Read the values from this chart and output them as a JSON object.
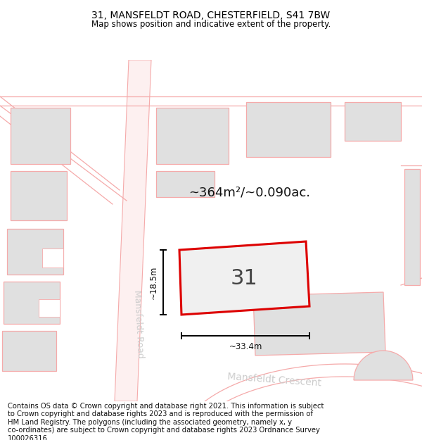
{
  "title": "31, MANSFELDT ROAD, CHESTERFIELD, S41 7BW",
  "subtitle": "Map shows position and indicative extent of the property.",
  "area_label": "~364m²/~0.090ac.",
  "property_number": "31",
  "dim_width": "~33.4m",
  "dim_height": "~18.5m",
  "road_label1": "Mansfeldt Road",
  "road_label2": "Mansfeldt Crescent",
  "footer": "Contains OS data © Crown copyright and database right 2021. This information is subject\nto Crown copyright and database rights 2023 and is reproduced with the permission of\nHM Land Registry. The polygons (including the associated geometry, namely x, y\nco-ordinates) are subject to Crown copyright and database rights 2023 Ordnance Survey\n100026316.",
  "bg_color": "#ffffff",
  "building_fill": "#e0e0e0",
  "building_edge": "#f5aaaa",
  "road_color": "#f5aaaa",
  "road_fill": "#fdf0f0",
  "property_fill": "#f0f0f0",
  "property_edge": "#dd0000",
  "title_fontsize": 10,
  "subtitle_fontsize": 8.5,
  "footer_fontsize": 7.2,
  "area_fontsize": 13,
  "dim_fontsize": 8.5,
  "road_label_fontsize": 9,
  "number_fontsize": 22
}
